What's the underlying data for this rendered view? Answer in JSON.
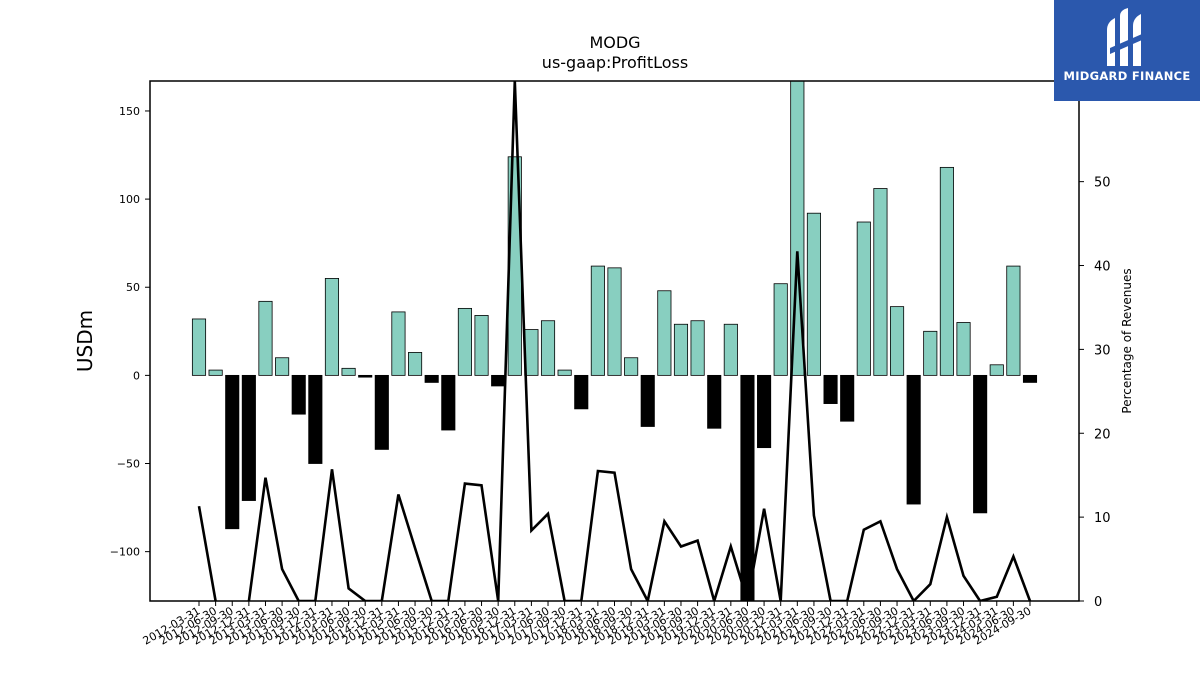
{
  "chart_data": {
    "type": "bar",
    "title": "MODG",
    "subtitle": "us-gaap:ProfitLoss",
    "ylabel": "USDm",
    "y2label": "Percentage of Revenues",
    "ylim": [
      -128,
      167
    ],
    "y2lim": [
      0,
      62
    ],
    "yticks": [
      -100,
      -50,
      0,
      50,
      100,
      150
    ],
    "y2ticks": [
      0,
      10,
      20,
      30,
      40,
      50
    ],
    "colors": {
      "positive": "#88cfc0",
      "negative": "#000000",
      "line": "#000000",
      "bar_edge": "#000000"
    },
    "categories": [
      "2012-03-31",
      "2012-06-30",
      "2012-09-30",
      "2012-12-31",
      "2013-03-31",
      "2013-06-30",
      "2013-09-30",
      "2013-12-31",
      "2014-03-31",
      "2014-06-30",
      "2014-09-30",
      "2014-12-31",
      "2015-03-31",
      "2015-06-30",
      "2015-09-30",
      "2015-12-31",
      "2016-03-31",
      "2016-06-30",
      "2016-09-30",
      "2016-12-31",
      "2017-03-31",
      "2017-06-30",
      "2017-09-30",
      "2017-12-31",
      "2018-03-31",
      "2018-06-30",
      "2018-09-30",
      "2018-12-31",
      "2019-03-31",
      "2019-06-30",
      "2019-09-30",
      "2019-12-31",
      "2020-03-31",
      "2020-06-30",
      "2020-09-30",
      "2020-12-31",
      "2021-03-31",
      "2021-06-30",
      "2021-09-30",
      "2021-12-31",
      "2022-03-31",
      "2022-06-30",
      "2022-09-30",
      "2022-12-31",
      "2023-03-31",
      "2023-06-30",
      "2023-09-30",
      "2023-12-31",
      "2024-03-31",
      "2024-06-30",
      "2024-09-30"
    ],
    "xtick_labels": [
      "2012-03-31",
      "2012-06-30",
      "2012-09-30",
      "2012-12-31",
      "2013-03-31",
      "2013-06-30",
      "2013-09-30",
      "2013-12-31",
      "2014-03-31",
      "2014-06-30",
      "2014-09-30",
      "2014-12-31",
      "2015-03-31",
      "2015-06-30",
      "2015-09-30",
      "2015-12-31",
      "2016-03-31",
      "2016-06-30",
      "2016-09-30",
      "2016-12-31",
      "2017-03-31",
      "2017-06-30",
      "2017-09-30",
      "2017-12-31",
      "2018-03-31",
      "2018-06-30",
      "2018-09-30",
      "2018-12-31",
      "2019-03-31",
      "2019-06-30",
      "2019-09-30",
      "2019-12-31",
      "2020-03-31",
      "2020-06-30",
      "2020-09-30",
      "2020-12-31",
      "2021-03-31",
      "2021-06-30",
      "2021-09-30",
      "2021-12-31",
      "2022-03-31",
      "2022-06-30",
      "2022-09-30",
      "2022-12-31",
      "2023-03-31",
      "2023-06-30",
      "2023-09-30",
      "2023-12-31",
      "2024-03-31",
      "2024-06-30",
      "2024-09-30"
    ],
    "series": [
      {
        "type": "bar",
        "axis": "left",
        "values": [
          32,
          3,
          -87,
          -71,
          42,
          10,
          -22,
          -50,
          55,
          4,
          -1,
          -42,
          36,
          13,
          -4,
          -31,
          38,
          34,
          -6,
          124,
          26,
          31,
          3,
          -19,
          62,
          61,
          10,
          -29,
          48,
          29,
          31,
          -30,
          29,
          -128,
          -41,
          52,
          167,
          92,
          -16,
          -26,
          87,
          106,
          39,
          -73,
          25,
          118,
          30,
          -78,
          6,
          62,
          -4
        ]
      },
      {
        "type": "line",
        "axis": "right",
        "values": [
          11.3,
          0,
          null,
          0,
          14.7,
          3.8,
          0,
          0,
          15.7,
          1.5,
          0,
          0,
          12.7,
          6.3,
          0,
          0,
          14.0,
          13.8,
          0,
          62,
          8.4,
          10.4,
          0,
          0,
          15.5,
          15.3,
          3.8,
          0,
          9.5,
          6.5,
          7.2,
          0,
          6.5,
          0,
          11.0,
          0,
          41.7,
          10.2,
          0,
          0,
          8.5,
          9.5,
          3.8,
          0,
          2.0,
          10.0,
          3.0,
          0,
          0.5,
          5.3,
          0
        ]
      }
    ],
    "legend": "none",
    "grid": false
  },
  "logo": {
    "text": "MIDGARD FINANCE"
  }
}
